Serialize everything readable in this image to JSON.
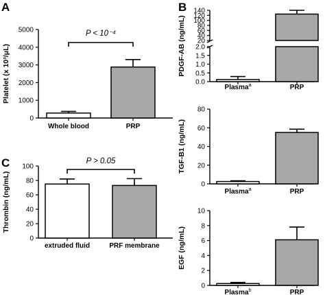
{
  "chart_data": [
    {
      "panel": "A",
      "type": "bar",
      "ylabel": "Platelet (x 10³/μL)",
      "ylim": [
        0,
        5000
      ],
      "yticks": [
        "0",
        "1000",
        "2000",
        "3000",
        "4000",
        "5000"
      ],
      "categories": [
        "Whole blood",
        "PRP"
      ],
      "values": [
        280,
        2880
      ],
      "errors": [
        90,
        420
      ],
      "fills": [
        "#ffffff",
        "#a8a8a8"
      ],
      "annotation": "P < 10⁻⁴"
    },
    {
      "panel": "B",
      "type": "bar",
      "ylabel": "PDGF-AB (ng/mL)",
      "axis_break": true,
      "ylim_lower": [
        0,
        2.0
      ],
      "yticks_lower": [
        "0.0",
        "0.5",
        "1.0",
        "1.5",
        "2.0"
      ],
      "ylim_upper": [
        20,
        140
      ],
      "yticks_upper": [
        "20",
        "40",
        "60",
        "80",
        "100",
        "120",
        "140"
      ],
      "categories": [
        "Plasma",
        "PRP"
      ],
      "category_superscripts": [
        "a",
        ""
      ],
      "values": [
        0.12,
        125
      ],
      "errors": [
        0.17,
        15
      ],
      "fills": [
        "#ffffff",
        "#a8a8a8"
      ]
    },
    {
      "panel": "B",
      "type": "bar",
      "ylabel": "TGF-B1 (ng/mL)",
      "ylim": [
        0,
        80
      ],
      "yticks": [
        "0",
        "20",
        "40",
        "60",
        "80"
      ],
      "categories": [
        "Plasma",
        "PRP"
      ],
      "category_superscripts": [
        "a",
        ""
      ],
      "values": [
        2.5,
        55
      ],
      "errors": [
        0.8,
        3.5
      ],
      "fills": [
        "#ffffff",
        "#a8a8a8"
      ]
    },
    {
      "panel": "B",
      "type": "bar",
      "ylabel": "EGF (ng/mL)",
      "ylim": [
        0,
        10
      ],
      "yticks": [
        "0",
        "2",
        "4",
        "6",
        "8",
        "10"
      ],
      "categories": [
        "Plasma",
        "PRP"
      ],
      "category_superscripts": [
        "b",
        ""
      ],
      "values": [
        0.25,
        6.1
      ],
      "errors": [
        0.15,
        1.7
      ],
      "fills": [
        "#ffffff",
        "#a8a8a8"
      ]
    },
    {
      "panel": "C",
      "type": "bar",
      "ylabel": "Thrombin (ng/mL)",
      "ylim": [
        0,
        100
      ],
      "yticks": [
        "0",
        "20",
        "40",
        "60",
        "80",
        "100"
      ],
      "categories": [
        "extruded fluid",
        "PRF membrane"
      ],
      "values": [
        75,
        73
      ],
      "errors": [
        7,
        9.5
      ],
      "fills": [
        "#ffffff",
        "#a8a8a8"
      ],
      "annotation": "P > 0.05"
    }
  ]
}
